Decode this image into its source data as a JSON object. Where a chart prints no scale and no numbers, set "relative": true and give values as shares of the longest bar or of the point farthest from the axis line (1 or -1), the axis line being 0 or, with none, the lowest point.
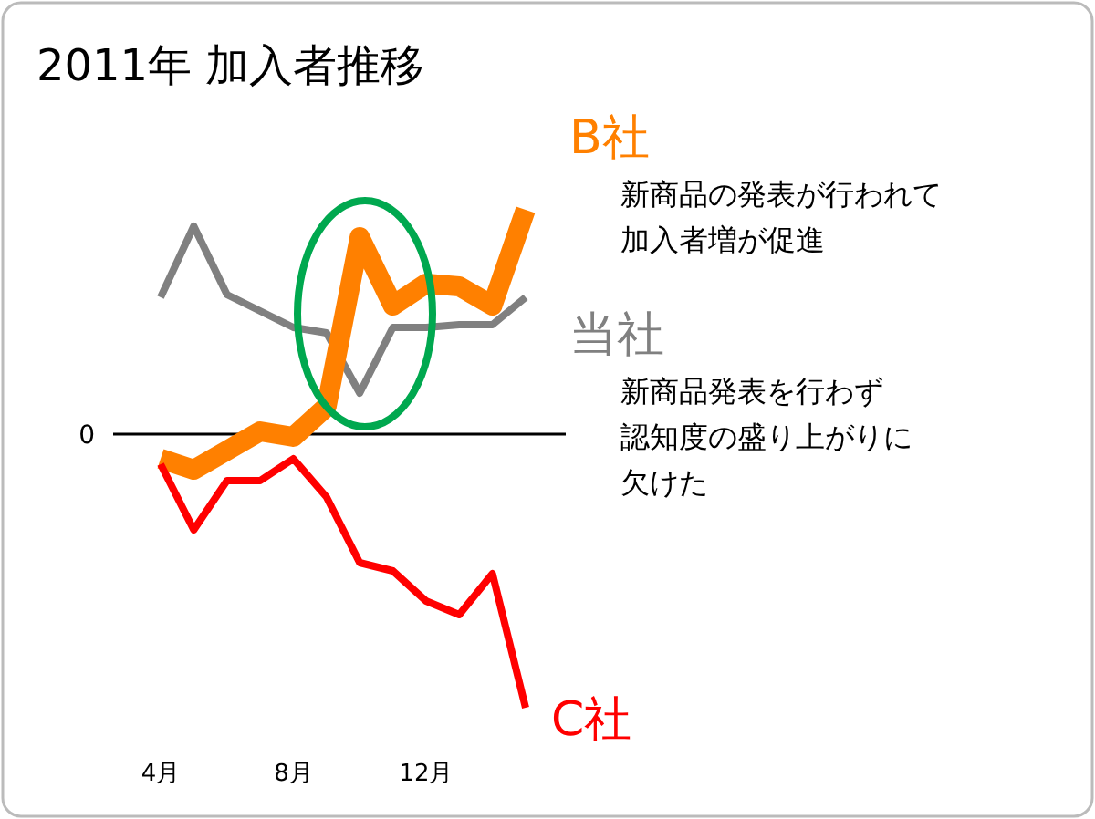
{
  "chart_data": {
    "type": "line",
    "title": "2011年 加入者推移",
    "relative": true,
    "categories": [
      "4月",
      null,
      null,
      null,
      "8月",
      null,
      null,
      null,
      "12月",
      null,
      null,
      null
    ],
    "series": [
      {
        "name": "当社",
        "color": "#808080",
        "values": [
          0.5,
          0.76,
          0.51,
          0.45,
          0.39,
          0.37,
          0.15,
          0.39,
          0.39,
          0.4,
          0.4,
          0.5
        ]
      },
      {
        "name": "B社",
        "color": "#ff8000",
        "values": [
          -0.09,
          -0.13,
          -0.06,
          0.01,
          -0.01,
          0.1,
          0.72,
          0.47,
          0.55,
          0.54,
          0.47,
          0.82
        ]
      },
      {
        "name": "C社",
        "color": "#ff0000",
        "values": [
          -0.11,
          -0.35,
          -0.17,
          -0.17,
          -0.09,
          -0.23,
          -0.47,
          -0.5,
          -0.61,
          -0.66,
          -0.51,
          -1
        ]
      }
    ],
    "ref_lines": [
      {
        "axis": "y",
        "value": 0,
        "label": "0",
        "color": "#000000"
      }
    ],
    "annotations": [
      "新商品の発表が行われて",
      "加入者増が促進",
      "新商品発表を行わず",
      "認知度の盛り上がりに",
      "欠けた"
    ],
    "legend": "right",
    "marker": "none",
    "line_style": "solid"
  }
}
